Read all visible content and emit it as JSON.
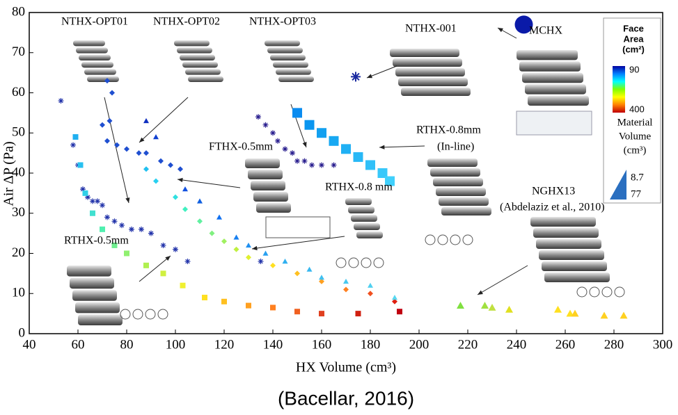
{
  "chart_data": {
    "type": "scatter",
    "xlabel": "HX Volume (cm³)",
    "ylabel": "Air ΔP (Pa)",
    "caption": "(Bacellar, 2016)",
    "xlim": [
      40,
      300
    ],
    "xticks": [
      40,
      60,
      80,
      100,
      120,
      140,
      160,
      180,
      200,
      220,
      240,
      260,
      280,
      300
    ],
    "ylim": [
      0,
      80
    ],
    "yticks": [
      0,
      10,
      20,
      30,
      40,
      50,
      60,
      70,
      80
    ],
    "series": [
      {
        "name": "NTHX-OPT01",
        "marker": "asterisk",
        "color": "#2233aa",
        "x": [
          53,
          58,
          60,
          62,
          64,
          66,
          68,
          70,
          72,
          75,
          78,
          82,
          86,
          90,
          95,
          100,
          105,
          135
        ],
        "values": [
          58,
          47,
          42,
          36,
          34,
          33,
          33,
          32,
          29,
          28,
          27,
          26,
          26,
          25,
          22,
          21,
          18,
          18
        ]
      },
      {
        "name": "NTHX-OPT02",
        "marker": "diamond",
        "color": "#1f4fd0",
        "x": [
          72,
          74,
          73,
          70,
          72,
          76,
          80,
          85,
          88,
          94,
          98,
          102
        ],
        "values": [
          63,
          60,
          53,
          52,
          48,
          47,
          46,
          45,
          45,
          43,
          42,
          41
        ]
      },
      {
        "name": "NTHX-OPT03",
        "marker": "asterisk",
        "color": "#2a1f8f",
        "x": [
          134,
          137,
          140,
          142,
          145,
          148,
          150,
          153,
          156,
          160,
          165
        ],
        "values": [
          54,
          52,
          50,
          48,
          46,
          45,
          43,
          43,
          42,
          42,
          42
        ]
      },
      {
        "name": "NTHX-001",
        "marker": "asterisk",
        "color": "#1a2aa0",
        "size": 14,
        "x": [
          174
        ],
        "values": [
          64
        ]
      },
      {
        "name": "MCHX",
        "marker": "circle",
        "color": "#0a1aa8",
        "size": 26,
        "x": [
          243
        ],
        "values": [
          77
        ]
      },
      {
        "name": "RTHX-0.8mm",
        "marker": "square",
        "size": 14,
        "x": [
          150,
          155,
          160,
          165,
          170,
          175,
          180,
          185,
          188
        ],
        "values": [
          55,
          52,
          50,
          48,
          46,
          44,
          42,
          40,
          38
        ],
        "colors": [
          "#0a8cf0",
          "#0a96f0",
          "#12a0f0",
          "#18a8f2",
          "#20b0f4",
          "#28b8f6",
          "#30c0f8",
          "#38c8fa",
          "#40d0fc"
        ]
      },
      {
        "name": "FTHX-0.5mm",
        "marker": "diamond",
        "x": [
          88,
          92,
          100,
          104,
          110,
          115,
          120,
          125,
          130,
          140,
          150,
          160,
          170,
          180,
          190
        ],
        "values": [
          41,
          38,
          34,
          31,
          28,
          25,
          23,
          21,
          19,
          17,
          15,
          13,
          11,
          10,
          8
        ],
        "colors": [
          "#20c0f0",
          "#28d0f0",
          "#30e0e0",
          "#40f0c0",
          "#60f0a0",
          "#80f080",
          "#a0f060",
          "#c0f040",
          "#e0f030",
          "#ffe020",
          "#ffc020",
          "#ffa020",
          "#ff8020",
          "#f05020",
          "#e02010"
        ]
      },
      {
        "name": "RTHX-0.8 mm",
        "marker": "triangle",
        "x": [
          88,
          92,
          104,
          110,
          118,
          125,
          130,
          137,
          145,
          155,
          160,
          170,
          180,
          190
        ],
        "values": [
          53,
          49,
          36,
          33,
          29,
          24,
          22,
          20,
          18,
          16,
          14,
          13,
          12,
          9
        ],
        "colors": [
          "#1030c0",
          "#1040d0",
          "#1050e0",
          "#1060e0",
          "#1070f0",
          "#1880f0",
          "#2090f0",
          "#28a0f0",
          "#30b0f0",
          "#38b8f0",
          "#40c0f0",
          "#48c8f0",
          "#50d0f0",
          "#58d8f0"
        ]
      },
      {
        "name": "RTHX-0.5mm",
        "marker": "square",
        "x": [
          59,
          61,
          63,
          66,
          70,
          75,
          80,
          88,
          95,
          103,
          112,
          120,
          130,
          140,
          150,
          160,
          175,
          192
        ],
        "values": [
          49,
          42,
          35,
          30,
          26,
          22,
          20,
          17,
          15,
          12,
          9,
          8,
          7,
          6.5,
          5.5,
          5,
          5,
          5.5
        ],
        "colors": [
          "#20b0f0",
          "#28c0f0",
          "#30d0e8",
          "#40e0d0",
          "#50f0b0",
          "#70f090",
          "#90f070",
          "#b0f050",
          "#d0f040",
          "#f0f030",
          "#ffe020",
          "#ffc020",
          "#ffa020",
          "#ff8020",
          "#f06020",
          "#e04020",
          "#d02010",
          "#c00010"
        ]
      },
      {
        "name": "NGHX13",
        "marker": "triangle",
        "size": 11,
        "x": [
          217,
          227,
          230,
          237,
          257,
          262,
          264,
          276,
          284
        ],
        "values": [
          7,
          7,
          6.5,
          6,
          6,
          5,
          5,
          4.5,
          4.5
        ],
        "colors": [
          "#80e040",
          "#a0e040",
          "#c0e040",
          "#e0e020",
          "#ffe020",
          "#ffe020",
          "#ffd020",
          "#ffd020",
          "#ffd020"
        ]
      }
    ],
    "annotations": [
      "(In-line)",
      "(Abdelaziz et al., 2010)"
    ],
    "colorbar": {
      "title": [
        "Face",
        "Area",
        "(cm²)"
      ],
      "ticks": [
        90,
        400
      ],
      "colormap": [
        "#0000a0",
        "#0080ff",
        "#00ffff",
        "#80ff00",
        "#ffff00",
        "#ff8000",
        "#c00000"
      ]
    },
    "size_legend": {
      "title": [
        "Material",
        "Volume",
        "(cm³)"
      ],
      "ticks": [
        8.7,
        77
      ],
      "color": "#2a6fc0"
    }
  }
}
